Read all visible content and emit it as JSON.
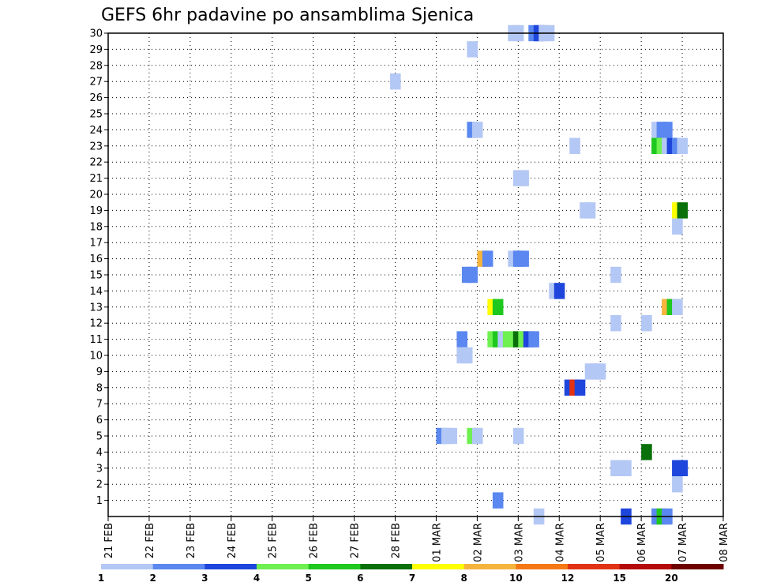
{
  "chart_data": {
    "type": "heatmap",
    "title": "GEFS 6hr padavine po ansamblima Sjenica",
    "xlabel": "",
    "ylabel": "",
    "x_ticks": [
      "21 FEB",
      "22 FEB",
      "23 FEB",
      "24 FEB",
      "25 FEB",
      "26 FEB",
      "27 FEB",
      "28 FEB",
      "01 MAR",
      "02 MAR",
      "03 MAR",
      "04 MAR",
      "05 MAR",
      "06 MAR",
      "07 MAR",
      "08 MAR"
    ],
    "y_ticks": [
      "1",
      "2",
      "3",
      "4",
      "5",
      "6",
      "7",
      "8",
      "9",
      "10",
      "11",
      "12",
      "13",
      "14",
      "15",
      "16",
      "17",
      "18",
      "19",
      "20",
      "21",
      "22",
      "23",
      "24",
      "25",
      "26",
      "27",
      "28",
      "29",
      "30"
    ],
    "ylim": [
      0,
      30
    ],
    "grid": true,
    "colorbar": {
      "labels": [
        "1",
        "2",
        "3",
        "4",
        "5",
        "6",
        "7",
        "8",
        "10",
        "12",
        "15",
        "20"
      ],
      "colors": [
        "#b4c8f5",
        "#5a87f0",
        "#1e46dc",
        "#6ef050",
        "#1ec81e",
        "#0a700a",
        "#ffff00",
        "#f5b43c",
        "#f57814",
        "#e13214",
        "#b40a0a",
        "#6e0000"
      ]
    },
    "cells": [
      {
        "t": 39.5,
        "m": 30,
        "c": 0
      },
      {
        "t": 40.0,
        "m": 30,
        "c": 0
      },
      {
        "t": 41.5,
        "m": 30,
        "c": 1
      },
      {
        "t": 42.0,
        "m": 30,
        "c": 2
      },
      {
        "t": 42.5,
        "m": 30,
        "c": 0
      },
      {
        "t": 43.0,
        "m": 30,
        "c": 0
      },
      {
        "t": 35.5,
        "m": 29,
        "c": 0
      },
      {
        "t": 28.0,
        "m": 27,
        "c": 0
      },
      {
        "t": 35.5,
        "m": 24,
        "c": 1
      },
      {
        "t": 36.0,
        "m": 24,
        "c": 0
      },
      {
        "t": 53.5,
        "m": 24,
        "c": 0
      },
      {
        "t": 54.0,
        "m": 24,
        "c": 1
      },
      {
        "t": 54.5,
        "m": 24,
        "c": 1
      },
      {
        "t": 45.5,
        "m": 23,
        "c": 0
      },
      {
        "t": 53.5,
        "m": 23,
        "c": 4
      },
      {
        "t": 54.0,
        "m": 23,
        "c": 3
      },
      {
        "t": 54.5,
        "m": 23,
        "c": 0
      },
      {
        "t": 55.0,
        "m": 23,
        "c": 2
      },
      {
        "t": 55.5,
        "m": 23,
        "c": 1
      },
      {
        "t": 56.0,
        "m": 23,
        "c": 0
      },
      {
        "t": 40.0,
        "m": 21,
        "c": 0
      },
      {
        "t": 40.5,
        "m": 21,
        "c": 0
      },
      {
        "t": 46.5,
        "m": 19,
        "c": 0
      },
      {
        "t": 47.0,
        "m": 19,
        "c": 0
      },
      {
        "t": 55.5,
        "m": 19,
        "c": 6
      },
      {
        "t": 56.0,
        "m": 19,
        "c": 5
      },
      {
        "t": 55.5,
        "m": 18,
        "c": 0
      },
      {
        "t": 36.5,
        "m": 16,
        "c": 7
      },
      {
        "t": 37.0,
        "m": 16,
        "c": 1
      },
      {
        "t": 39.5,
        "m": 16,
        "c": 0
      },
      {
        "t": 40.0,
        "m": 16,
        "c": 1
      },
      {
        "t": 40.5,
        "m": 16,
        "c": 1
      },
      {
        "t": 35.0,
        "m": 15,
        "c": 1
      },
      {
        "t": 35.5,
        "m": 15,
        "c": 1
      },
      {
        "t": 49.5,
        "m": 15,
        "c": 0
      },
      {
        "t": 43.5,
        "m": 14,
        "c": 0
      },
      {
        "t": 44.0,
        "m": 14,
        "c": 2
      },
      {
        "t": 37.5,
        "m": 13,
        "c": 6
      },
      {
        "t": 38.0,
        "m": 13,
        "c": 4
      },
      {
        "t": 54.5,
        "m": 13,
        "c": 7
      },
      {
        "t": 55.0,
        "m": 13,
        "c": 4
      },
      {
        "t": 55.5,
        "m": 13,
        "c": 0
      },
      {
        "t": 49.5,
        "m": 12,
        "c": 0
      },
      {
        "t": 52.5,
        "m": 12,
        "c": 0
      },
      {
        "t": 34.5,
        "m": 11,
        "c": 1
      },
      {
        "t": 37.5,
        "m": 11,
        "c": 3
      },
      {
        "t": 38.0,
        "m": 11,
        "c": 4
      },
      {
        "t": 38.5,
        "m": 11,
        "c": 0
      },
      {
        "t": 39.0,
        "m": 11,
        "c": 3
      },
      {
        "t": 39.5,
        "m": 11,
        "c": 3
      },
      {
        "t": 40.0,
        "m": 11,
        "c": 5
      },
      {
        "t": 40.5,
        "m": 11,
        "c": 3
      },
      {
        "t": 41.0,
        "m": 11,
        "c": 2
      },
      {
        "t": 41.5,
        "m": 11,
        "c": 1
      },
      {
        "t": 34.5,
        "m": 10,
        "c": 0
      },
      {
        "t": 35.0,
        "m": 10,
        "c": 0
      },
      {
        "t": 47.0,
        "m": 9,
        "c": 0
      },
      {
        "t": 47.5,
        "m": 9,
        "c": 0
      },
      {
        "t": 48.0,
        "m": 9,
        "c": 0
      },
      {
        "t": 45.0,
        "m": 8,
        "c": 2
      },
      {
        "t": 45.5,
        "m": 8,
        "c": 9
      },
      {
        "t": 46.0,
        "m": 8,
        "c": 2
      },
      {
        "t": 32.5,
        "m": 5,
        "c": 1
      },
      {
        "t": 33.0,
        "m": 5,
        "c": 0
      },
      {
        "t": 33.5,
        "m": 5,
        "c": 0
      },
      {
        "t": 35.5,
        "m": 5,
        "c": 3
      },
      {
        "t": 36.0,
        "m": 5,
        "c": 0
      },
      {
        "t": 40.0,
        "m": 5,
        "c": 0
      },
      {
        "t": 52.5,
        "m": 4,
        "c": 5
      },
      {
        "t": 49.5,
        "m": 3,
        "c": 0
      },
      {
        "t": 50.0,
        "m": 3,
        "c": 0
      },
      {
        "t": 50.5,
        "m": 3,
        "c": 0
      },
      {
        "t": 55.5,
        "m": 3,
        "c": 2
      },
      {
        "t": 56.0,
        "m": 3,
        "c": 2
      },
      {
        "t": 55.5,
        "m": 2,
        "c": 0
      },
      {
        "t": 38.0,
        "m": 1,
        "c": 1
      },
      {
        "t": 42.0,
        "m": 0,
        "c": 0
      },
      {
        "t": 50.5,
        "m": 0,
        "c": 2
      },
      {
        "t": 53.5,
        "m": 0,
        "c": 1
      },
      {
        "t": 54.0,
        "m": 0,
        "c": 4
      },
      {
        "t": 54.5,
        "m": 0,
        "c": 1
      }
    ]
  }
}
